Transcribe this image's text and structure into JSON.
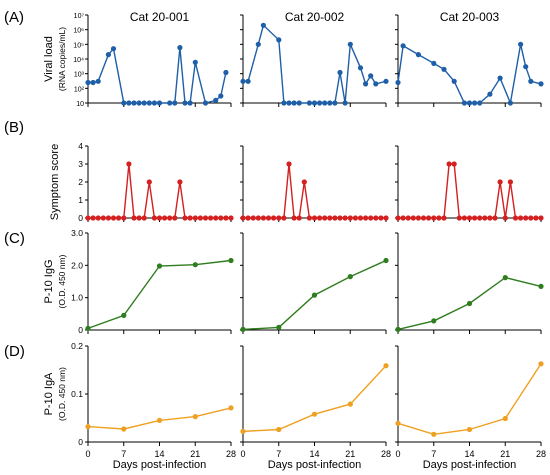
{
  "figure": {
    "panel_labels": [
      "(A)",
      "(B)",
      "(C)",
      "(D)"
    ],
    "x_axis_label": "Days post-infection",
    "x_ticks": [
      0,
      7,
      14,
      21,
      28
    ]
  },
  "colors": {
    "viral_load": "#1f5fa8",
    "symptom": "#d42020",
    "igg": "#2e7d1e",
    "iga": "#f0a020"
  },
  "chart_data": [
    {
      "type": "line",
      "panel": "A",
      "title": "Cat 20-001",
      "ylabel": "Viral load",
      "ylabel2": "(RNA copies/mL)",
      "yscale": "log",
      "ylim": [
        10,
        10000000
      ],
      "yticks": [
        "10",
        "10²",
        "10³",
        "10⁴",
        "10⁵",
        "10⁶",
        "10⁷"
      ],
      "x": [
        0,
        1,
        2,
        4,
        5,
        7,
        8,
        9,
        10,
        11,
        12,
        13,
        14,
        16,
        17,
        18,
        19,
        20,
        21,
        23,
        25,
        26,
        27
      ],
      "y": [
        250,
        250,
        300,
        20000,
        50000,
        10,
        10,
        10,
        10,
        10,
        10,
        10,
        10,
        10,
        10,
        60000,
        10,
        10,
        6000,
        10,
        15,
        30,
        1200
      ]
    },
    {
      "type": "line",
      "panel": "A",
      "title": "Cat 20-002",
      "yscale": "log",
      "ylim": [
        10,
        10000000
      ],
      "x": [
        0,
        1,
        3,
        4,
        7,
        8,
        9,
        10,
        11,
        13,
        14,
        15,
        16,
        17,
        18,
        19,
        20,
        21,
        23,
        24,
        25,
        26,
        28
      ],
      "y": [
        300,
        300,
        100000,
        2000000,
        200000,
        10,
        10,
        10,
        10,
        10,
        10,
        10,
        10,
        10,
        10,
        1200,
        10,
        100000,
        2500,
        200,
        700,
        200,
        300
      ]
    },
    {
      "type": "line",
      "panel": "A",
      "title": "Cat 20-003",
      "yscale": "log",
      "ylim": [
        10,
        10000000
      ],
      "x": [
        0,
        1,
        4,
        7,
        9,
        11,
        13,
        14,
        15,
        16,
        18,
        20,
        22,
        24,
        25,
        26,
        28
      ],
      "y": [
        250,
        80000,
        20000,
        5000,
        2000,
        300,
        10,
        10,
        10,
        10,
        40,
        500,
        10,
        100000,
        3000,
        300,
        200
      ]
    },
    {
      "type": "line",
      "panel": "B",
      "ylabel": "Symptom score",
      "ylim": [
        0,
        4
      ],
      "yticks": [
        0,
        1,
        2,
        3,
        4
      ],
      "x": [
        0,
        1,
        2,
        3,
        4,
        5,
        6,
        7,
        8,
        9,
        10,
        11,
        12,
        13,
        14,
        15,
        16,
        17,
        18,
        19,
        20,
        21,
        22,
        23,
        24,
        25,
        26,
        27,
        28
      ],
      "y": [
        0,
        0,
        0,
        0,
        0,
        0,
        0,
        0,
        3,
        0,
        0,
        0,
        2,
        0,
        0,
        0,
        0,
        0,
        2,
        0,
        0,
        0,
        0,
        0,
        0,
        0,
        0,
        0,
        0
      ]
    },
    {
      "type": "line",
      "panel": "B",
      "ylim": [
        0,
        4
      ],
      "x": [
        0,
        1,
        2,
        3,
        4,
        5,
        6,
        7,
        8,
        9,
        10,
        11,
        12,
        13,
        14,
        15,
        16,
        17,
        18,
        19,
        20,
        21,
        22,
        23,
        24,
        25,
        26,
        27,
        28
      ],
      "y": [
        0,
        0,
        0,
        0,
        0,
        0,
        0,
        0,
        0,
        3,
        0,
        0,
        2,
        0,
        0,
        0,
        0,
        0,
        0,
        0,
        0,
        0,
        0,
        0,
        0,
        0,
        0,
        0,
        0
      ]
    },
    {
      "type": "line",
      "panel": "B",
      "ylim": [
        0,
        4
      ],
      "x": [
        0,
        1,
        2,
        3,
        4,
        5,
        6,
        7,
        8,
        9,
        10,
        11,
        12,
        13,
        14,
        15,
        16,
        17,
        18,
        19,
        20,
        21,
        22,
        23,
        24,
        25,
        26,
        27,
        28
      ],
      "y": [
        0,
        0,
        0,
        0,
        0,
        0,
        0,
        0,
        0,
        0,
        3,
        3,
        0,
        0,
        0,
        0,
        0,
        0,
        0,
        0,
        2,
        0,
        2,
        0,
        0,
        0,
        0,
        0,
        0
      ]
    },
    {
      "type": "line",
      "panel": "C",
      "ylabel": "P-10 IgG",
      "ylabel2": "(O.D. 450 nm)",
      "ylim": [
        0,
        3.0
      ],
      "yticks": [
        "0",
        "1.0",
        "2.0",
        "3.0"
      ],
      "x": [
        0,
        7,
        14,
        21,
        28
      ],
      "y": [
        0.05,
        0.45,
        1.98,
        2.02,
        2.15
      ]
    },
    {
      "type": "line",
      "panel": "C",
      "ylim": [
        0,
        3.0
      ],
      "x": [
        0,
        7,
        14,
        21,
        28
      ],
      "y": [
        0.02,
        0.08,
        1.08,
        1.65,
        2.15
      ]
    },
    {
      "type": "line",
      "panel": "C",
      "ylim": [
        0,
        3.0
      ],
      "x": [
        0,
        7,
        14,
        21,
        28
      ],
      "y": [
        0.02,
        0.28,
        0.82,
        1.62,
        1.35
      ]
    },
    {
      "type": "line",
      "panel": "D",
      "ylabel": "P-10 IgA",
      "ylabel2": "(O.D. 450 nm)",
      "ylim": [
        0,
        0.2
      ],
      "yticks": [
        "0",
        "0.1",
        "0.2"
      ],
      "x": [
        0,
        7,
        14,
        21,
        28
      ],
      "y": [
        0.032,
        0.027,
        0.045,
        0.053,
        0.071
      ]
    },
    {
      "type": "line",
      "panel": "D",
      "ylim": [
        0,
        0.2
      ],
      "x": [
        0,
        7,
        14,
        21,
        28
      ],
      "y": [
        0.022,
        0.026,
        0.058,
        0.079,
        0.159
      ]
    },
    {
      "type": "line",
      "panel": "D",
      "ylim": [
        0,
        0.2
      ],
      "x": [
        0,
        7,
        14,
        21,
        28
      ],
      "y": [
        0.039,
        0.016,
        0.026,
        0.049,
        0.163
      ]
    }
  ]
}
